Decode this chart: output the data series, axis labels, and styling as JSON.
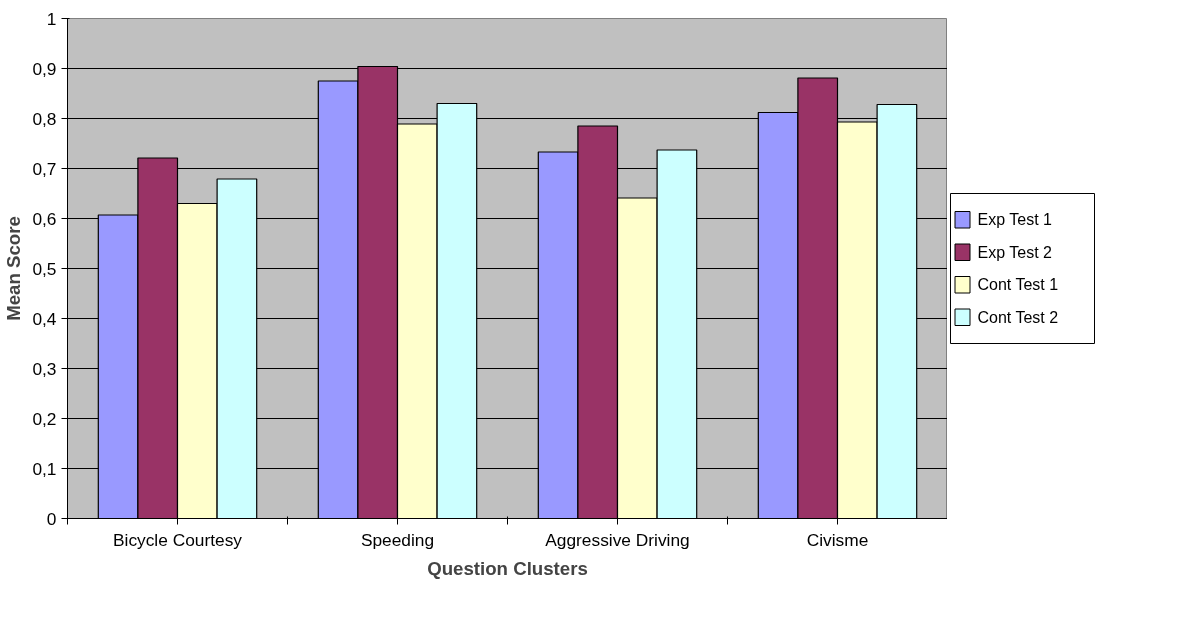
{
  "chart_data": {
    "type": "bar",
    "xlabel": "Question Clusters",
    "ylabel": "Mean Score",
    "categories": [
      "Bicycle Courtesy",
      "Speeding",
      "Aggressive Driving",
      "Civisme"
    ],
    "series": [
      {
        "name": "Exp Test 1",
        "color": "#9999ff",
        "values": [
          0.607,
          0.875,
          0.733,
          0.812
        ]
      },
      {
        "name": "Exp Test 2",
        "color": "#993366",
        "values": [
          0.721,
          0.904,
          0.785,
          0.881
        ]
      },
      {
        "name": "Cont Test 1",
        "color": "#ffffcc",
        "values": [
          0.63,
          0.789,
          0.641,
          0.793
        ]
      },
      {
        "name": "Cont Test 2",
        "color": "#ccffff",
        "values": [
          0.679,
          0.83,
          0.737,
          0.828
        ]
      }
    ],
    "ylim": [
      0,
      1
    ],
    "yticks": [
      {
        "value": 0,
        "label": "0"
      },
      {
        "value": 0.1,
        "label": "0,1"
      },
      {
        "value": 0.2,
        "label": "0,2"
      },
      {
        "value": 0.3,
        "label": "0,3"
      },
      {
        "value": 0.4,
        "label": "0,4"
      },
      {
        "value": 0.5,
        "label": "0,5"
      },
      {
        "value": 0.6,
        "label": "0,6"
      },
      {
        "value": 0.7,
        "label": "0,7"
      },
      {
        "value": 0.8,
        "label": "0,8"
      },
      {
        "value": 0.9,
        "label": "0,9"
      },
      {
        "value": 1,
        "label": "1"
      }
    ],
    "grid": "y",
    "legend": "right"
  }
}
